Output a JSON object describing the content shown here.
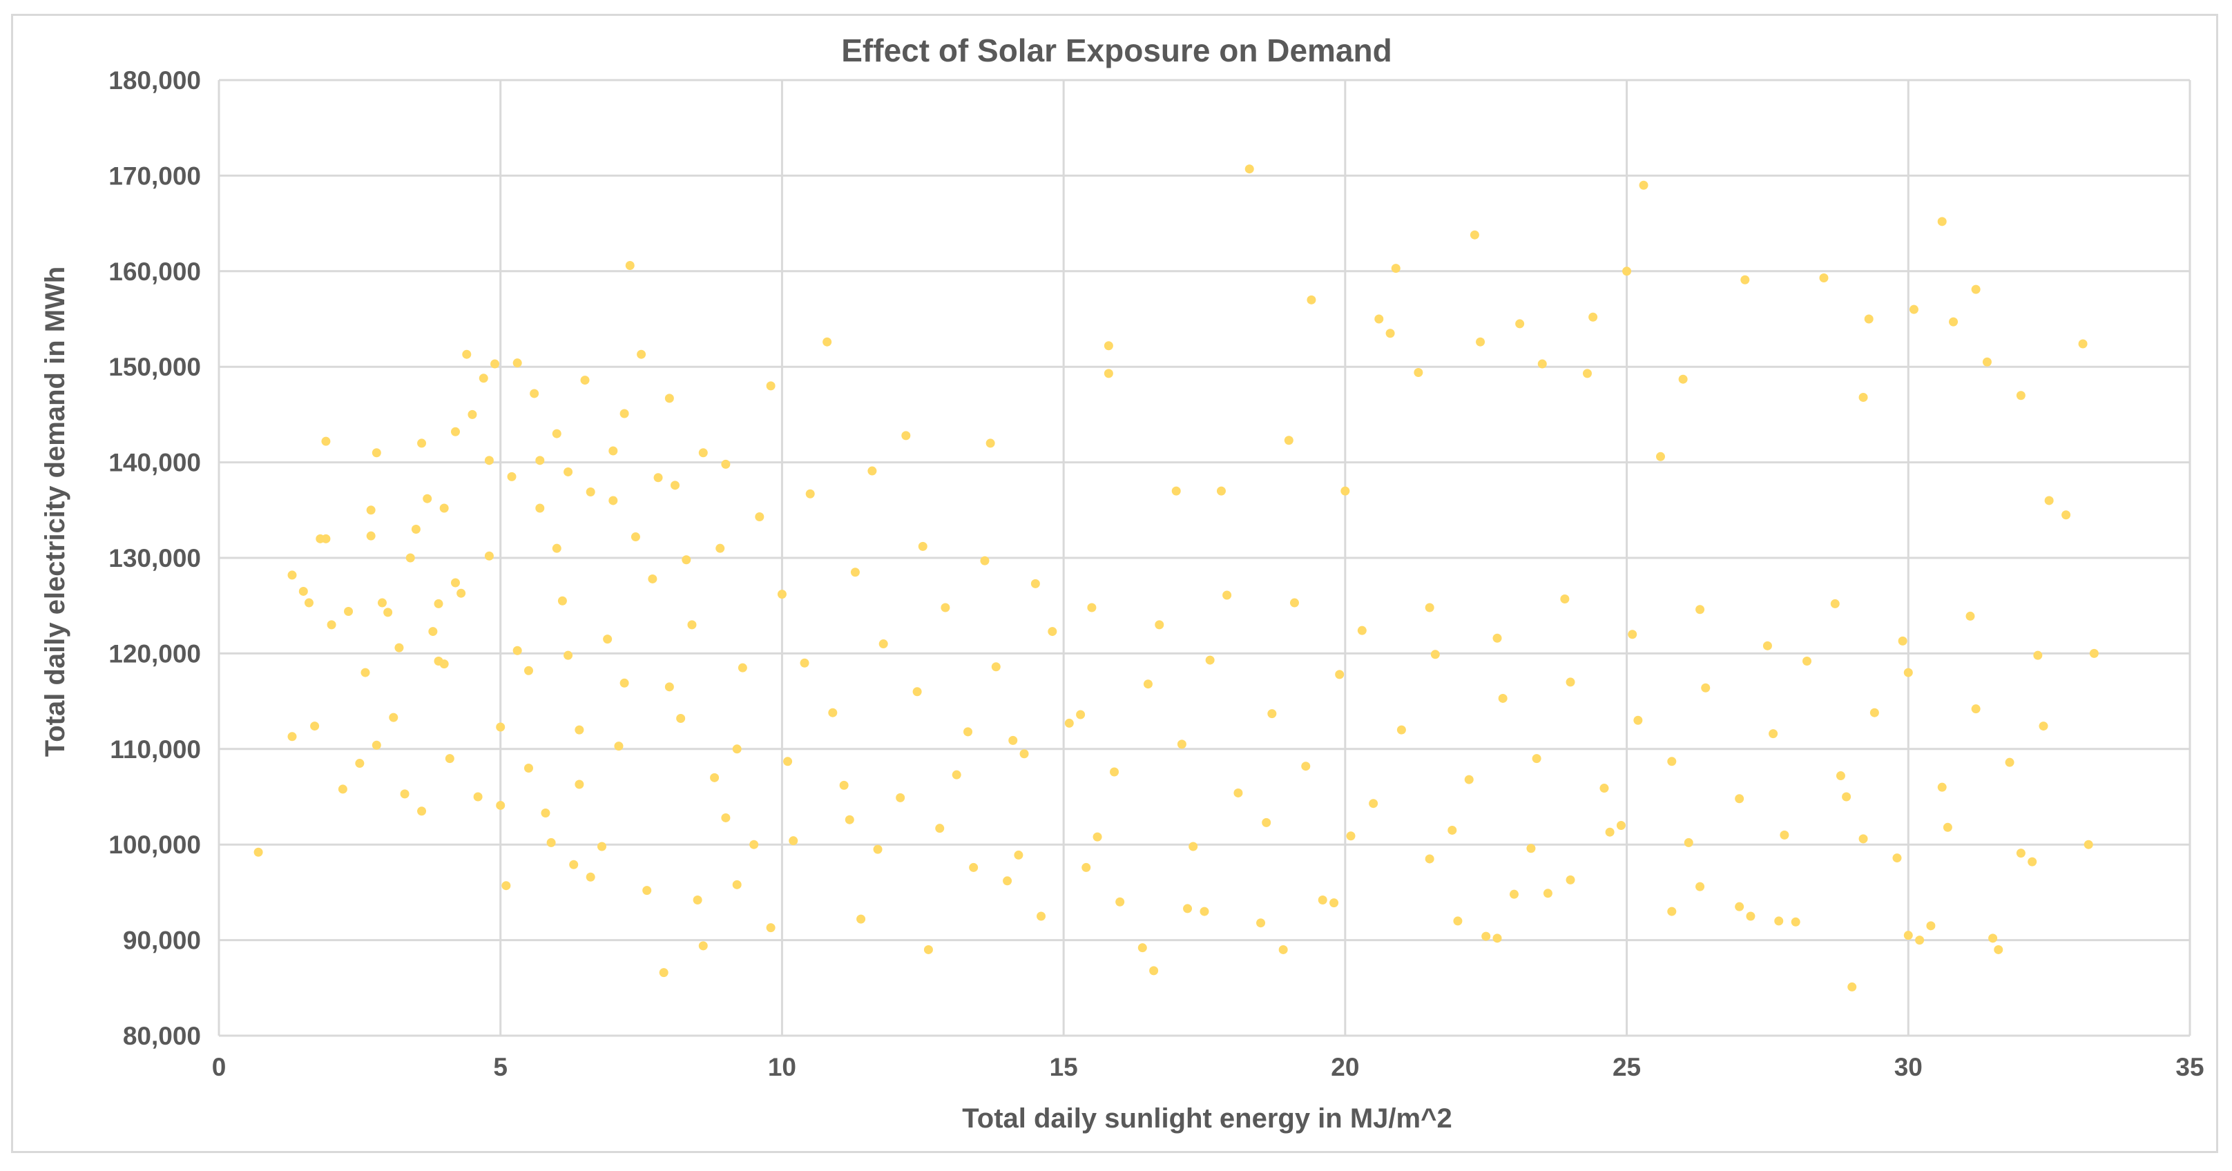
{
  "chart_data": {
    "type": "scatter",
    "title": "Effect of Solar Exposure on Demand",
    "xlabel": "Total daily sunlight energy in MJ/m^2",
    "ylabel": "Total daily electricity demand in MWh",
    "xlim": [
      0,
      35
    ],
    "ylim": [
      80000,
      180000
    ],
    "x_ticks": [
      "0",
      "5",
      "10",
      "15",
      "20",
      "25",
      "30",
      "35"
    ],
    "y_ticks": [
      "80,000",
      "90,000",
      "100,000",
      "110,000",
      "120,000",
      "130,000",
      "140,000",
      "150,000",
      "160,000",
      "170,000",
      "180,000"
    ],
    "grid": true,
    "legend": "none",
    "marker_color": "#FFD966",
    "series": [
      {
        "points": [
          [
            0.7,
            99200
          ],
          [
            1.3,
            111300
          ],
          [
            1.3,
            128200
          ],
          [
            1.5,
            126500
          ],
          [
            1.6,
            125300
          ],
          [
            1.7,
            112400
          ],
          [
            1.8,
            132000
          ],
          [
            1.9,
            142200
          ],
          [
            1.9,
            132000
          ],
          [
            2.0,
            123000
          ],
          [
            2.2,
            105800
          ],
          [
            2.3,
            124400
          ],
          [
            2.5,
            108500
          ],
          [
            2.6,
            118000
          ],
          [
            2.7,
            135000
          ],
          [
            2.7,
            132300
          ],
          [
            2.8,
            141000
          ],
          [
            2.8,
            110400
          ],
          [
            2.9,
            125300
          ],
          [
            3.0,
            124300
          ],
          [
            3.1,
            113300
          ],
          [
            3.2,
            120600
          ],
          [
            3.3,
            105300
          ],
          [
            3.4,
            130000
          ],
          [
            3.5,
            133000
          ],
          [
            3.6,
            103500
          ],
          [
            3.6,
            142000
          ],
          [
            3.7,
            136200
          ],
          [
            3.8,
            122300
          ],
          [
            3.9,
            125200
          ],
          [
            4.0,
            118900
          ],
          [
            4.0,
            135200
          ],
          [
            4.1,
            109000
          ],
          [
            4.2,
            143200
          ],
          [
            4.3,
            126300
          ],
          [
            4.4,
            151300
          ],
          [
            4.5,
            145000
          ],
          [
            4.6,
            105000
          ],
          [
            4.7,
            148800
          ],
          [
            4.8,
            140200
          ],
          [
            4.9,
            150300
          ],
          [
            5.0,
            112300
          ],
          [
            5.0,
            104100
          ],
          [
            5.1,
            95700
          ],
          [
            5.2,
            138500
          ],
          [
            5.3,
            150400
          ],
          [
            5.3,
            120300
          ],
          [
            5.5,
            108000
          ],
          [
            5.6,
            147200
          ],
          [
            5.7,
            140200
          ],
          [
            5.8,
            103300
          ],
          [
            5.9,
            100200
          ],
          [
            6.0,
            131000
          ],
          [
            6.2,
            139000
          ],
          [
            6.3,
            97900
          ],
          [
            6.4,
            106300
          ],
          [
            6.5,
            148600
          ],
          [
            6.6,
            96600
          ],
          [
            6.8,
            99800
          ],
          [
            7.0,
            136000
          ],
          [
            7.1,
            110300
          ],
          [
            7.2,
            145100
          ],
          [
            7.3,
            160600
          ],
          [
            7.5,
            151300
          ],
          [
            7.6,
            95200
          ],
          [
            7.9,
            86600
          ],
          [
            8.0,
            116500
          ],
          [
            8.3,
            129800
          ],
          [
            8.5,
            94200
          ],
          [
            8.6,
            89400
          ],
          [
            8.8,
            107000
          ],
          [
            9.2,
            95800
          ],
          [
            9.5,
            100000
          ],
          [
            9.8,
            91300
          ],
          [
            10.8,
            152600
          ],
          [
            11.2,
            102600
          ],
          [
            11.4,
            92200
          ],
          [
            12.2,
            142800
          ],
          [
            12.6,
            89000
          ],
          [
            13.4,
            97600
          ],
          [
            13.7,
            142000
          ],
          [
            14.0,
            96200
          ],
          [
            14.6,
            92500
          ],
          [
            15.4,
            97600
          ],
          [
            15.8,
            152200
          ],
          [
            15.8,
            149300
          ],
          [
            16.0,
            94000
          ],
          [
            16.4,
            89200
          ],
          [
            16.6,
            86800
          ],
          [
            17.0,
            137000
          ],
          [
            17.2,
            93300
          ],
          [
            17.5,
            93000
          ],
          [
            17.8,
            137000
          ],
          [
            18.3,
            170700
          ],
          [
            18.5,
            91800
          ],
          [
            18.9,
            89000
          ],
          [
            19.0,
            142300
          ],
          [
            19.4,
            157000
          ],
          [
            19.6,
            94200
          ],
          [
            19.8,
            93900
          ],
          [
            20.0,
            137000
          ],
          [
            20.6,
            155000
          ],
          [
            20.8,
            153500
          ],
          [
            20.9,
            160300
          ],
          [
            21.3,
            149400
          ],
          [
            21.5,
            98500
          ],
          [
            22.0,
            92000
          ],
          [
            22.3,
            163800
          ],
          [
            22.4,
            152600
          ],
          [
            22.5,
            90400
          ],
          [
            22.7,
            90200
          ],
          [
            23.0,
            94800
          ],
          [
            23.1,
            154500
          ],
          [
            23.5,
            150300
          ],
          [
            23.6,
            94900
          ],
          [
            24.0,
            96300
          ],
          [
            24.3,
            149300
          ],
          [
            24.4,
            155200
          ],
          [
            24.9,
            102000
          ],
          [
            25.0,
            160000
          ],
          [
            25.3,
            169000
          ],
          [
            25.6,
            140600
          ],
          [
            25.8,
            93000
          ],
          [
            26.0,
            148700
          ],
          [
            26.3,
            95600
          ],
          [
            27.0,
            93500
          ],
          [
            27.1,
            159100
          ],
          [
            27.2,
            92500
          ],
          [
            27.7,
            92000
          ],
          [
            28.0,
            91900
          ],
          [
            28.5,
            159300
          ],
          [
            28.9,
            105000
          ],
          [
            29.0,
            85100
          ],
          [
            29.2,
            146800
          ],
          [
            29.3,
            155000
          ],
          [
            29.8,
            98600
          ],
          [
            30.0,
            90500
          ],
          [
            30.1,
            156000
          ],
          [
            30.2,
            90000
          ],
          [
            30.4,
            91500
          ],
          [
            30.6,
            165200
          ],
          [
            30.8,
            154700
          ],
          [
            31.2,
            158100
          ],
          [
            31.4,
            150500
          ],
          [
            31.5,
            90200
          ],
          [
            31.6,
            89000
          ],
          [
            32.0,
            147000
          ],
          [
            32.2,
            98200
          ],
          [
            32.5,
            136000
          ],
          [
            32.8,
            134500
          ],
          [
            33.1,
            152400
          ],
          [
            33.2,
            100000
          ],
          [
            33.3,
            120000
          ],
          [
            5.5,
            118200
          ],
          [
            6.1,
            125500
          ],
          [
            6.4,
            112000
          ],
          [
            6.9,
            121500
          ],
          [
            7.4,
            132200
          ],
          [
            7.7,
            127800
          ],
          [
            8.1,
            137600
          ],
          [
            8.4,
            123000
          ],
          [
            8.9,
            131000
          ],
          [
            9.3,
            118500
          ],
          [
            9.6,
            134300
          ],
          [
            10.0,
            126200
          ],
          [
            10.4,
            119000
          ],
          [
            10.9,
            113800
          ],
          [
            11.3,
            128500
          ],
          [
            11.8,
            121000
          ],
          [
            12.4,
            116000
          ],
          [
            12.9,
            124800
          ],
          [
            13.3,
            111800
          ],
          [
            13.8,
            118600
          ],
          [
            14.3,
            109500
          ],
          [
            14.8,
            122300
          ],
          [
            15.3,
            113600
          ],
          [
            15.9,
            107600
          ],
          [
            16.5,
            116800
          ],
          [
            17.1,
            110500
          ],
          [
            17.6,
            119300
          ],
          [
            18.1,
            105400
          ],
          [
            18.7,
            113700
          ],
          [
            19.3,
            108200
          ],
          [
            19.9,
            117800
          ],
          [
            20.5,
            104300
          ],
          [
            21.0,
            112000
          ],
          [
            21.6,
            119900
          ],
          [
            22.2,
            106800
          ],
          [
            22.8,
            115300
          ],
          [
            23.4,
            109000
          ],
          [
            24.0,
            117000
          ],
          [
            24.6,
            105900
          ],
          [
            25.2,
            113000
          ],
          [
            25.8,
            108700
          ],
          [
            26.4,
            116400
          ],
          [
            27.0,
            104800
          ],
          [
            27.6,
            111600
          ],
          [
            28.2,
            119200
          ],
          [
            28.8,
            107200
          ],
          [
            29.4,
            113800
          ],
          [
            30.0,
            118000
          ],
          [
            30.6,
            106000
          ],
          [
            31.2,
            114200
          ],
          [
            31.8,
            108600
          ],
          [
            32.4,
            112400
          ],
          [
            6.0,
            143000
          ],
          [
            7.0,
            141200
          ],
          [
            8.0,
            146700
          ],
          [
            9.0,
            139800
          ],
          [
            9.8,
            148000
          ],
          [
            8.6,
            141000
          ],
          [
            7.8,
            138400
          ],
          [
            6.6,
            136900
          ],
          [
            5.7,
            135200
          ],
          [
            4.8,
            130200
          ],
          [
            4.2,
            127400
          ],
          [
            3.9,
            119200
          ],
          [
            10.5,
            136700
          ],
          [
            11.6,
            139100
          ],
          [
            12.5,
            131200
          ],
          [
            13.6,
            129700
          ],
          [
            14.5,
            127300
          ],
          [
            15.5,
            124800
          ],
          [
            16.7,
            123000
          ],
          [
            17.9,
            126100
          ],
          [
            19.1,
            125300
          ],
          [
            20.3,
            122400
          ],
          [
            21.5,
            124800
          ],
          [
            22.7,
            121600
          ],
          [
            23.9,
            125700
          ],
          [
            25.1,
            122000
          ],
          [
            26.3,
            124600
          ],
          [
            27.5,
            120800
          ],
          [
            28.7,
            125200
          ],
          [
            29.9,
            121300
          ],
          [
            31.1,
            123900
          ],
          [
            32.3,
            119800
          ],
          [
            9.0,
            102800
          ],
          [
            10.2,
            100400
          ],
          [
            11.7,
            99500
          ],
          [
            12.8,
            101700
          ],
          [
            14.2,
            98900
          ],
          [
            15.6,
            100800
          ],
          [
            17.3,
            99800
          ],
          [
            18.6,
            102300
          ],
          [
            20.1,
            100900
          ],
          [
            21.9,
            101500
          ],
          [
            23.3,
            99600
          ],
          [
            24.7,
            101300
          ],
          [
            26.1,
            100200
          ],
          [
            27.8,
            101000
          ],
          [
            29.2,
            100600
          ],
          [
            30.7,
            101800
          ],
          [
            32.0,
            99100
          ],
          [
            6.2,
            119800
          ],
          [
            7.2,
            116900
          ],
          [
            8.2,
            113200
          ],
          [
            9.2,
            110000
          ],
          [
            10.1,
            108700
          ],
          [
            11.1,
            106200
          ],
          [
            12.1,
            104900
          ],
          [
            13.1,
            107300
          ],
          [
            14.1,
            110900
          ],
          [
            15.1,
            112700
          ]
        ]
      }
    ]
  }
}
